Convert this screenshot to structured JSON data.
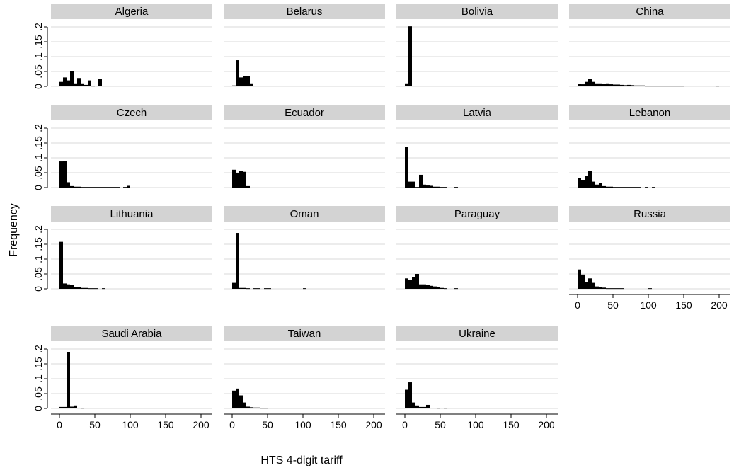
{
  "chart_data": {
    "type": "bar",
    "subtype": "histogram-small-multiples",
    "title": "",
    "xlabel": "HTS 4-digit tariff",
    "ylabel": "Frequency",
    "xlim": [
      0,
      200
    ],
    "ylim": [
      0,
      0.2
    ],
    "x_ticks": [
      0,
      50,
      100,
      150,
      200
    ],
    "x_tick_labels": [
      "0",
      "50",
      "100",
      "150",
      "200"
    ],
    "y_ticks": [
      0,
      0.05,
      0.1,
      0.15,
      0.2
    ],
    "y_tick_labels": [
      "0",
      ".05",
      ".1",
      ".15",
      ".2"
    ],
    "grid": "horizontal",
    "bar_color": "#000000",
    "strip_color": "#d3d3d3",
    "panels": [
      {
        "name": "Algeria",
        "bin_width": 5,
        "bins": [
          [
            0,
            0.015
          ],
          [
            5,
            0.03
          ],
          [
            10,
            0.02
          ],
          [
            15,
            0.05
          ],
          [
            20,
            0.01
          ],
          [
            25,
            0.028
          ],
          [
            30,
            0.01
          ],
          [
            35,
            0.005
          ],
          [
            40,
            0.02
          ],
          [
            45,
            0.002
          ],
          [
            55,
            0.025
          ]
        ]
      },
      {
        "name": "Belarus",
        "bin_width": 5,
        "bins": [
          [
            0,
            0.003
          ],
          [
            5,
            0.088
          ],
          [
            10,
            0.03
          ],
          [
            15,
            0.035
          ],
          [
            20,
            0.035
          ],
          [
            25,
            0.01
          ]
        ]
      },
      {
        "name": "Bolivia",
        "bin_width": 5,
        "bins": [
          [
            0,
            0.01
          ],
          [
            5,
            0.202
          ]
        ]
      },
      {
        "name": "China",
        "bin_width": 5,
        "bins": [
          [
            0,
            0.008
          ],
          [
            5,
            0.007
          ],
          [
            10,
            0.015
          ],
          [
            15,
            0.025
          ],
          [
            20,
            0.015
          ],
          [
            25,
            0.01
          ],
          [
            30,
            0.01
          ],
          [
            35,
            0.008
          ],
          [
            40,
            0.01
          ],
          [
            45,
            0.007
          ],
          [
            50,
            0.006
          ],
          [
            55,
            0.006
          ],
          [
            60,
            0.005
          ],
          [
            65,
            0.004
          ],
          [
            70,
            0.005
          ],
          [
            75,
            0.004
          ],
          [
            80,
            0.003
          ],
          [
            85,
            0.003
          ],
          [
            90,
            0.003
          ],
          [
            95,
            0.002
          ],
          [
            100,
            0.002
          ],
          [
            105,
            0.002
          ],
          [
            110,
            0.002
          ],
          [
            115,
            0.002
          ],
          [
            120,
            0.002
          ],
          [
            125,
            0.002
          ],
          [
            130,
            0.002
          ],
          [
            135,
            0.002
          ],
          [
            140,
            0.002
          ],
          [
            145,
            0.002
          ],
          [
            195,
            0.002
          ]
        ]
      },
      {
        "name": "Czech",
        "bin_width": 5,
        "bins": [
          [
            0,
            0.088
          ],
          [
            5,
            0.09
          ],
          [
            10,
            0.018
          ],
          [
            15,
            0.005
          ],
          [
            20,
            0.003
          ],
          [
            25,
            0.003
          ],
          [
            30,
            0.002
          ],
          [
            35,
            0.002
          ],
          [
            40,
            0.002
          ],
          [
            45,
            0.002
          ],
          [
            50,
            0.002
          ],
          [
            55,
            0.002
          ],
          [
            60,
            0.002
          ],
          [
            65,
            0.002
          ],
          [
            70,
            0.002
          ],
          [
            75,
            0.002
          ],
          [
            80,
            0.002
          ],
          [
            90,
            0.002
          ],
          [
            95,
            0.006
          ]
        ]
      },
      {
        "name": "Ecuador",
        "bin_width": 5,
        "bins": [
          [
            0,
            0.06
          ],
          [
            5,
            0.05
          ],
          [
            10,
            0.055
          ],
          [
            15,
            0.053
          ],
          [
            20,
            0.005
          ]
        ]
      },
      {
        "name": "Latvia",
        "bin_width": 5,
        "bins": [
          [
            0,
            0.138
          ],
          [
            5,
            0.02
          ],
          [
            10,
            0.02
          ],
          [
            15,
            0.002
          ],
          [
            20,
            0.043
          ],
          [
            25,
            0.01
          ],
          [
            30,
            0.007
          ],
          [
            35,
            0.006
          ],
          [
            40,
            0.003
          ],
          [
            45,
            0.003
          ],
          [
            50,
            0.002
          ],
          [
            55,
            0.002
          ],
          [
            70,
            0.002
          ]
        ]
      },
      {
        "name": "Lebanon",
        "bin_width": 5,
        "bins": [
          [
            0,
            0.032
          ],
          [
            5,
            0.025
          ],
          [
            10,
            0.04
          ],
          [
            15,
            0.055
          ],
          [
            20,
            0.02
          ],
          [
            25,
            0.01
          ],
          [
            30,
            0.015
          ],
          [
            35,
            0.005
          ],
          [
            40,
            0.003
          ],
          [
            45,
            0.003
          ],
          [
            50,
            0.002
          ],
          [
            55,
            0.002
          ],
          [
            60,
            0.002
          ],
          [
            65,
            0.002
          ],
          [
            70,
            0.002
          ],
          [
            75,
            0.002
          ],
          [
            80,
            0.002
          ],
          [
            85,
            0.002
          ],
          [
            95,
            0.002
          ],
          [
            105,
            0.002
          ]
        ]
      },
      {
        "name": "Lithuania",
        "bin_width": 5,
        "bins": [
          [
            0,
            0.158
          ],
          [
            5,
            0.018
          ],
          [
            10,
            0.015
          ],
          [
            15,
            0.013
          ],
          [
            20,
            0.006
          ],
          [
            25,
            0.005
          ],
          [
            30,
            0.003
          ],
          [
            35,
            0.003
          ],
          [
            40,
            0.002
          ],
          [
            45,
            0.002
          ],
          [
            50,
            0.002
          ],
          [
            60,
            0.002
          ]
        ]
      },
      {
        "name": "Oman",
        "bin_width": 5,
        "bins": [
          [
            0,
            0.02
          ],
          [
            5,
            0.188
          ],
          [
            10,
            0.003
          ],
          [
            15,
            0.003
          ],
          [
            20,
            0.002
          ],
          [
            30,
            0.002
          ],
          [
            35,
            0.002
          ],
          [
            45,
            0.002
          ],
          [
            50,
            0.002
          ],
          [
            100,
            0.002
          ]
        ]
      },
      {
        "name": "Paraguay",
        "bin_width": 5,
        "bins": [
          [
            0,
            0.035
          ],
          [
            5,
            0.03
          ],
          [
            10,
            0.04
          ],
          [
            15,
            0.05
          ],
          [
            20,
            0.015
          ],
          [
            25,
            0.015
          ],
          [
            30,
            0.013
          ],
          [
            35,
            0.01
          ],
          [
            40,
            0.008
          ],
          [
            45,
            0.005
          ],
          [
            50,
            0.003
          ],
          [
            55,
            0.002
          ],
          [
            70,
            0.002
          ]
        ]
      },
      {
        "name": "Russia",
        "bin_width": 5,
        "bins": [
          [
            0,
            0.065
          ],
          [
            5,
            0.048
          ],
          [
            10,
            0.022
          ],
          [
            15,
            0.035
          ],
          [
            20,
            0.02
          ],
          [
            25,
            0.008
          ],
          [
            30,
            0.005
          ],
          [
            35,
            0.004
          ],
          [
            40,
            0.002
          ],
          [
            45,
            0.002
          ],
          [
            50,
            0.002
          ],
          [
            55,
            0.002
          ],
          [
            60,
            0.002
          ],
          [
            100,
            0.002
          ]
        ]
      },
      {
        "name": "Saudi Arabia",
        "bin_width": 5,
        "bins": [
          [
            0,
            0.005
          ],
          [
            5,
            0.005
          ],
          [
            10,
            0.19
          ],
          [
            15,
            0.006
          ],
          [
            20,
            0.01
          ],
          [
            30,
            0.002
          ]
        ]
      },
      {
        "name": "Taiwan",
        "bin_width": 5,
        "bins": [
          [
            0,
            0.06
          ],
          [
            5,
            0.067
          ],
          [
            10,
            0.044
          ],
          [
            15,
            0.02
          ],
          [
            20,
            0.006
          ],
          [
            25,
            0.004
          ],
          [
            30,
            0.003
          ],
          [
            35,
            0.003
          ],
          [
            40,
            0.002
          ],
          [
            45,
            0.002
          ]
        ]
      },
      {
        "name": "Ukraine",
        "bin_width": 5,
        "bins": [
          [
            0,
            0.063
          ],
          [
            5,
            0.088
          ],
          [
            10,
            0.02
          ],
          [
            15,
            0.01
          ],
          [
            20,
            0.005
          ],
          [
            25,
            0.005
          ],
          [
            30,
            0.012
          ],
          [
            45,
            0.002
          ],
          [
            55,
            0.002
          ]
        ]
      }
    ]
  }
}
